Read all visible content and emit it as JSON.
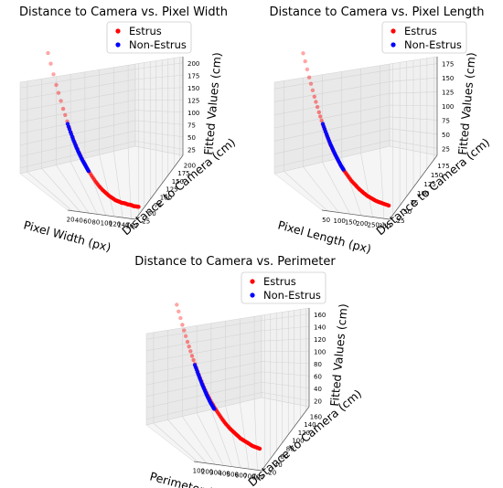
{
  "chart_data": [
    {
      "type": "scatter",
      "title": "Distance to Camera vs. Pixel Width",
      "xlabel": "Pixel Width (px)",
      "ylabel": "Distance to Camera (cm)",
      "zlabel": "Fitted Values (cm)",
      "x_ticks": [
        "20",
        "40",
        "60",
        "80",
        "100",
        "120",
        "140",
        "160"
      ],
      "y_ticks": [
        "25",
        "50",
        "75",
        "100",
        "125",
        "150",
        "175",
        "200"
      ],
      "z_ticks": [
        "25",
        "50",
        "75",
        "100",
        "125",
        "150",
        "175",
        "200"
      ],
      "xlim": [
        20,
        160
      ],
      "ylim": [
        25,
        200
      ],
      "zlim": [
        25,
        200
      ],
      "legend": {
        "position": "top-right",
        "entries": [
          "Estrus",
          "Non-Estrus"
        ]
      },
      "series": [
        {
          "name": "Estrus",
          "color": "#ff0000",
          "x": [
            22,
            28,
            34,
            40,
            46,
            52,
            58,
            64,
            70,
            76,
            82,
            88,
            94,
            100,
            106,
            112,
            118,
            124,
            130,
            136,
            142,
            148,
            154,
            158
          ],
          "y": [
            200,
            164,
            137,
            116,
            100,
            88,
            78,
            70,
            63,
            57,
            52,
            48,
            45,
            42,
            40,
            38,
            37,
            36,
            36,
            35,
            35,
            34,
            34,
            34
          ],
          "z": [
            200,
            164,
            137,
            116,
            100,
            88,
            78,
            70,
            63,
            57,
            52,
            48,
            45,
            42,
            40,
            38,
            37,
            36,
            36,
            35,
            35,
            34,
            34,
            34
          ]
        },
        {
          "name": "Non-Estrus",
          "color": "#0000ff",
          "x": [
            38,
            41,
            44,
            47,
            50,
            53,
            56,
            59,
            62,
            65
          ],
          "y": [
            120,
            111,
            103,
            96,
            90,
            85,
            80,
            76,
            72,
            68
          ],
          "z": [
            120,
            111,
            103,
            96,
            90,
            85,
            80,
            76,
            72,
            68
          ]
        }
      ]
    },
    {
      "type": "scatter",
      "title": "Distance to Camera vs. Pixel Length",
      "xlabel": "Pixel Length (px)",
      "ylabel": "Distance to Camera (cm)",
      "zlabel": "Fitted Values (cm)",
      "x_ticks": [
        "50",
        "100",
        "150",
        "200",
        "250",
        "300"
      ],
      "y_ticks": [
        "25",
        "50",
        "75",
        "100",
        "125",
        "150",
        "175"
      ],
      "z_ticks": [
        "25",
        "50",
        "75",
        "100",
        "125",
        "150",
        "175"
      ],
      "xlim": [
        40,
        320
      ],
      "ylim": [
        25,
        185
      ],
      "zlim": [
        25,
        185
      ],
      "legend": {
        "position": "top-right",
        "entries": [
          "Estrus",
          "Non-Estrus"
        ]
      },
      "series": [
        {
          "name": "Estrus",
          "color": "#ff0000",
          "x": [
            48,
            56,
            64,
            72,
            80,
            88,
            96,
            104,
            114,
            124,
            136,
            148,
            160,
            174,
            188,
            202,
            218,
            234,
            250,
            266,
            282,
            300
          ],
          "y": [
            185,
            160,
            140,
            124,
            111,
            101,
            92,
            85,
            78,
            71,
            65,
            60,
            55,
            51,
            47,
            44,
            41,
            39,
            37,
            36,
            35,
            34
          ],
          "z": [
            185,
            160,
            140,
            124,
            111,
            101,
            92,
            85,
            78,
            71,
            65,
            60,
            55,
            51,
            47,
            44,
            41,
            39,
            37,
            36,
            35,
            34
          ]
        },
        {
          "name": "Non-Estrus",
          "color": "#0000ff",
          "x": [
            80,
            86,
            92,
            98,
            104,
            110,
            116,
            122,
            128,
            134
          ],
          "y": [
            112,
            104,
            97,
            91,
            86,
            81,
            77,
            73,
            69,
            66
          ],
          "z": [
            112,
            104,
            97,
            91,
            86,
            81,
            77,
            73,
            69,
            66
          ]
        }
      ]
    },
    {
      "type": "scatter",
      "title": "Distance to Camera vs. Perimeter",
      "xlabel": "Perimeter (px)",
      "ylabel": "Distance to Camera (cm)",
      "zlabel": "Fitted Values (cm)",
      "x_ticks": [
        "100",
        "200",
        "300",
        "400",
        "500",
        "600",
        "700",
        "800"
      ],
      "y_ticks": [
        "20",
        "40",
        "60",
        "80",
        "100",
        "120",
        "140",
        "160"
      ],
      "z_ticks": [
        "20",
        "40",
        "60",
        "80",
        "100",
        "120",
        "140",
        "160"
      ],
      "xlim": [
        100,
        860
      ],
      "ylim": [
        15,
        170
      ],
      "zlim": [
        15,
        170
      ],
      "legend": {
        "position": "top-right",
        "entries": [
          "Estrus",
          "Non-Estrus"
        ]
      },
      "series": [
        {
          "name": "Estrus",
          "color": "#ff0000",
          "x": [
            140,
            165,
            190,
            215,
            240,
            265,
            290,
            320,
            350,
            380,
            410,
            440,
            470,
            505,
            540,
            575,
            610,
            650,
            690,
            730,
            770,
            810
          ],
          "y": [
            170,
            150,
            133,
            119,
            107,
            97,
            88,
            80,
            73,
            67,
            62,
            57,
            53,
            49,
            46,
            43,
            40,
            38,
            36,
            34,
            33,
            32
          ],
          "z": [
            170,
            150,
            133,
            119,
            107,
            97,
            88,
            80,
            73,
            67,
            62,
            57,
            53,
            49,
            46,
            43,
            40,
            38,
            36,
            34,
            33,
            32
          ]
        },
        {
          "name": "Non-Estrus",
          "color": "#0000ff",
          "x": [
            230,
            245,
            260,
            275,
            290,
            305,
            320,
            335,
            350,
            365
          ],
          "y": [
            110,
            103,
            97,
            91,
            86,
            81,
            77,
            73,
            70,
            67
          ],
          "z": [
            110,
            103,
            97,
            91,
            86,
            81,
            77,
            73,
            70,
            67
          ]
        }
      ]
    }
  ]
}
